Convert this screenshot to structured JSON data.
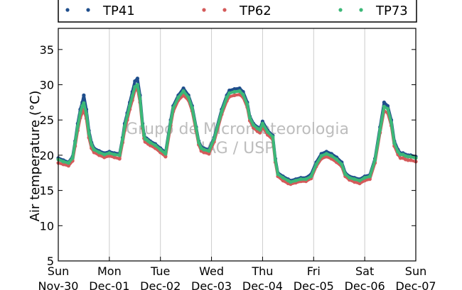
{
  "chart_data": {
    "type": "scatter",
    "ylabel": "Air temperature (°C)",
    "ylim": [
      5,
      38
    ],
    "yticks": [
      5,
      10,
      15,
      20,
      25,
      30,
      35
    ],
    "xlim": [
      0,
      7
    ],
    "xticks": [
      {
        "x": 0,
        "day": "Sun",
        "date": "Nov-30"
      },
      {
        "x": 1,
        "day": "Mon",
        "date": "Dec-01"
      },
      {
        "x": 2,
        "day": "Tue",
        "date": "Dec-02"
      },
      {
        "x": 3,
        "day": "Wed",
        "date": "Dec-03"
      },
      {
        "x": 4,
        "day": "Thu",
        "date": "Dec-04"
      },
      {
        "x": 5,
        "day": "Fri",
        "date": "Dec-05"
      },
      {
        "x": 6,
        "day": "Sat",
        "date": "Dec-06"
      },
      {
        "x": 7,
        "day": "Sun",
        "date": "Dec-07"
      }
    ],
    "grid": "vertical",
    "legend_position": "top",
    "watermark": [
      "Grupo de Micrometeorologia",
      "IAG / USP"
    ],
    "series": [
      {
        "name": "TP41",
        "color": "#1f4e8c",
        "x": [
          0.0,
          0.1,
          0.2,
          0.28,
          0.33,
          0.38,
          0.43,
          0.47,
          0.5,
          0.55,
          0.6,
          0.65,
          0.7,
          0.8,
          0.9,
          1.0,
          1.1,
          1.2,
          1.26,
          1.3,
          1.35,
          1.4,
          1.45,
          1.5,
          1.55,
          1.6,
          1.65,
          1.68,
          1.7,
          1.73,
          1.76,
          1.8,
          1.9,
          2.0,
          2.1,
          2.2,
          2.25,
          2.35,
          2.45,
          2.55,
          2.62,
          2.7,
          2.75,
          2.8,
          2.85,
          2.95,
          3.05,
          3.2,
          3.3,
          3.35,
          3.45,
          3.55,
          3.62,
          3.7,
          3.75,
          3.82,
          3.9,
          3.95,
          4.0,
          4.1,
          4.2,
          4.25,
          4.3,
          4.4,
          4.5,
          4.55,
          4.65,
          4.75,
          4.85,
          4.95,
          5.05,
          5.15,
          5.25,
          5.35,
          5.45,
          5.55,
          5.62,
          5.7,
          5.8,
          5.9,
          6.0,
          6.1,
          6.2,
          6.3,
          6.38,
          6.45,
          6.52,
          6.58,
          6.65,
          6.7,
          6.75,
          6.8,
          6.85,
          6.9,
          7.0
        ],
        "y": [
          19.6,
          19.3,
          19.0,
          19.8,
          22.0,
          24.5,
          26.5,
          27.5,
          28.5,
          26.5,
          23.5,
          21.8,
          21.0,
          20.6,
          20.3,
          20.5,
          20.3,
          20.2,
          22.5,
          24.5,
          26.0,
          27.5,
          29.0,
          30.5,
          30.9,
          28.5,
          24.5,
          23.0,
          22.5,
          22.4,
          22.2,
          22.0,
          21.6,
          21.0,
          20.4,
          25.0,
          27.0,
          28.5,
          29.5,
          28.5,
          27.0,
          24.0,
          22.0,
          21.2,
          21.0,
          20.8,
          22.5,
          26.5,
          28.5,
          29.2,
          29.4,
          29.5,
          29.0,
          27.5,
          25.5,
          24.5,
          24.0,
          23.8,
          24.8,
          23.5,
          22.8,
          19.5,
          17.5,
          17.0,
          16.6,
          16.4,
          16.6,
          16.8,
          16.8,
          17.3,
          19.0,
          20.2,
          20.5,
          20.2,
          19.7,
          19.0,
          17.5,
          17.0,
          16.8,
          16.6,
          17.0,
          17.2,
          19.5,
          24.0,
          27.5,
          27.0,
          25.0,
          22.0,
          20.8,
          20.3,
          20.3,
          20.1,
          20.0,
          20.0,
          19.8
        ]
      },
      {
        "name": "TP62",
        "color": "#d45a5a",
        "x": [
          0.0,
          0.1,
          0.2,
          0.28,
          0.33,
          0.38,
          0.43,
          0.47,
          0.5,
          0.55,
          0.6,
          0.65,
          0.7,
          0.8,
          0.9,
          1.0,
          1.1,
          1.2,
          1.26,
          1.3,
          1.35,
          1.4,
          1.45,
          1.5,
          1.55,
          1.6,
          1.65,
          1.68,
          1.7,
          1.73,
          1.76,
          1.8,
          1.9,
          2.0,
          2.1,
          2.2,
          2.25,
          2.35,
          2.45,
          2.55,
          2.62,
          2.7,
          2.75,
          2.8,
          2.85,
          2.95,
          3.05,
          3.2,
          3.3,
          3.35,
          3.45,
          3.55,
          3.62,
          3.7,
          3.75,
          3.82,
          3.9,
          3.95,
          4.0,
          4.1,
          4.2,
          4.25,
          4.3,
          4.4,
          4.5,
          4.55,
          4.65,
          4.75,
          4.85,
          4.95,
          5.05,
          5.15,
          5.25,
          5.35,
          5.45,
          5.55,
          5.62,
          5.7,
          5.8,
          5.9,
          6.0,
          6.1,
          6.2,
          6.3,
          6.38,
          6.45,
          6.52,
          6.58,
          6.65,
          6.7,
          6.75,
          6.8,
          6.85,
          6.9,
          7.0
        ],
        "y": [
          18.9,
          18.7,
          18.5,
          19.2,
          21.3,
          23.5,
          25.3,
          26.0,
          26.5,
          25.2,
          22.5,
          21.0,
          20.4,
          20.0,
          19.7,
          19.9,
          19.7,
          19.5,
          21.8,
          23.5,
          25.0,
          26.5,
          27.8,
          29.2,
          29.5,
          27.5,
          23.8,
          22.4,
          21.9,
          21.8,
          21.6,
          21.4,
          21.0,
          20.4,
          19.8,
          24.2,
          26.2,
          27.8,
          28.5,
          27.8,
          26.3,
          23.4,
          21.5,
          20.6,
          20.4,
          20.2,
          21.9,
          25.8,
          27.7,
          28.3,
          28.5,
          28.6,
          28.2,
          26.8,
          24.9,
          23.9,
          23.4,
          23.2,
          24.0,
          22.9,
          22.2,
          19.0,
          17.0,
          16.4,
          16.0,
          15.9,
          16.1,
          16.3,
          16.3,
          16.7,
          18.4,
          19.5,
          19.8,
          19.5,
          19.0,
          18.4,
          17.0,
          16.5,
          16.2,
          16.0,
          16.4,
          16.6,
          18.9,
          23.2,
          26.3,
          26.0,
          24.2,
          21.3,
          20.1,
          19.6,
          19.6,
          19.4,
          19.3,
          19.3,
          19.1
        ]
      },
      {
        "name": "TP73",
        "color": "#3cb878",
        "x": [
          0.0,
          0.1,
          0.2,
          0.28,
          0.33,
          0.38,
          0.43,
          0.47,
          0.5,
          0.55,
          0.6,
          0.65,
          0.7,
          0.8,
          0.9,
          1.0,
          1.1,
          1.2,
          1.26,
          1.3,
          1.35,
          1.4,
          1.45,
          1.5,
          1.55,
          1.6,
          1.65,
          1.68,
          1.7,
          1.73,
          1.76,
          1.8,
          1.9,
          2.0,
          2.1,
          2.2,
          2.25,
          2.35,
          2.45,
          2.55,
          2.62,
          2.7,
          2.75,
          2.8,
          2.85,
          2.95,
          3.05,
          3.2,
          3.3,
          3.35,
          3.45,
          3.55,
          3.62,
          3.7,
          3.75,
          3.82,
          3.9,
          3.95,
          4.0,
          4.1,
          4.2,
          4.25,
          4.3,
          4.4,
          4.5,
          4.55,
          4.65,
          4.75,
          4.85,
          4.95,
          5.05,
          5.15,
          5.25,
          5.35,
          5.45,
          5.55,
          5.62,
          5.7,
          5.8,
          5.9,
          6.0,
          6.1,
          6.2,
          6.3,
          6.38,
          6.45,
          6.52,
          6.58,
          6.65,
          6.7,
          6.75,
          6.8,
          6.85,
          6.9,
          7.0
        ],
        "y": [
          19.4,
          19.1,
          18.9,
          19.6,
          21.8,
          24.1,
          26.0,
          27.0,
          27.4,
          25.9,
          23.1,
          21.5,
          20.8,
          20.4,
          20.1,
          20.3,
          20.1,
          20.0,
          22.3,
          24.1,
          25.6,
          27.0,
          28.4,
          29.7,
          30.0,
          28.0,
          24.2,
          22.8,
          22.3,
          22.2,
          22.0,
          21.8,
          21.4,
          20.8,
          20.2,
          24.7,
          26.7,
          28.2,
          29.1,
          28.2,
          26.7,
          23.8,
          21.8,
          21.0,
          20.8,
          20.6,
          22.3,
          26.2,
          28.2,
          28.8,
          29.0,
          29.1,
          28.6,
          27.2,
          25.3,
          24.3,
          23.8,
          23.6,
          24.5,
          23.3,
          22.6,
          19.3,
          17.3,
          16.8,
          16.4,
          16.2,
          16.4,
          16.6,
          16.6,
          17.0,
          18.7,
          19.9,
          20.2,
          19.9,
          19.4,
          18.7,
          17.3,
          16.8,
          16.6,
          16.4,
          16.8,
          17.0,
          19.3,
          23.6,
          26.9,
          26.6,
          24.6,
          21.7,
          20.5,
          20.1,
          20.1,
          19.9,
          19.8,
          19.8,
          19.6
        ]
      }
    ]
  }
}
